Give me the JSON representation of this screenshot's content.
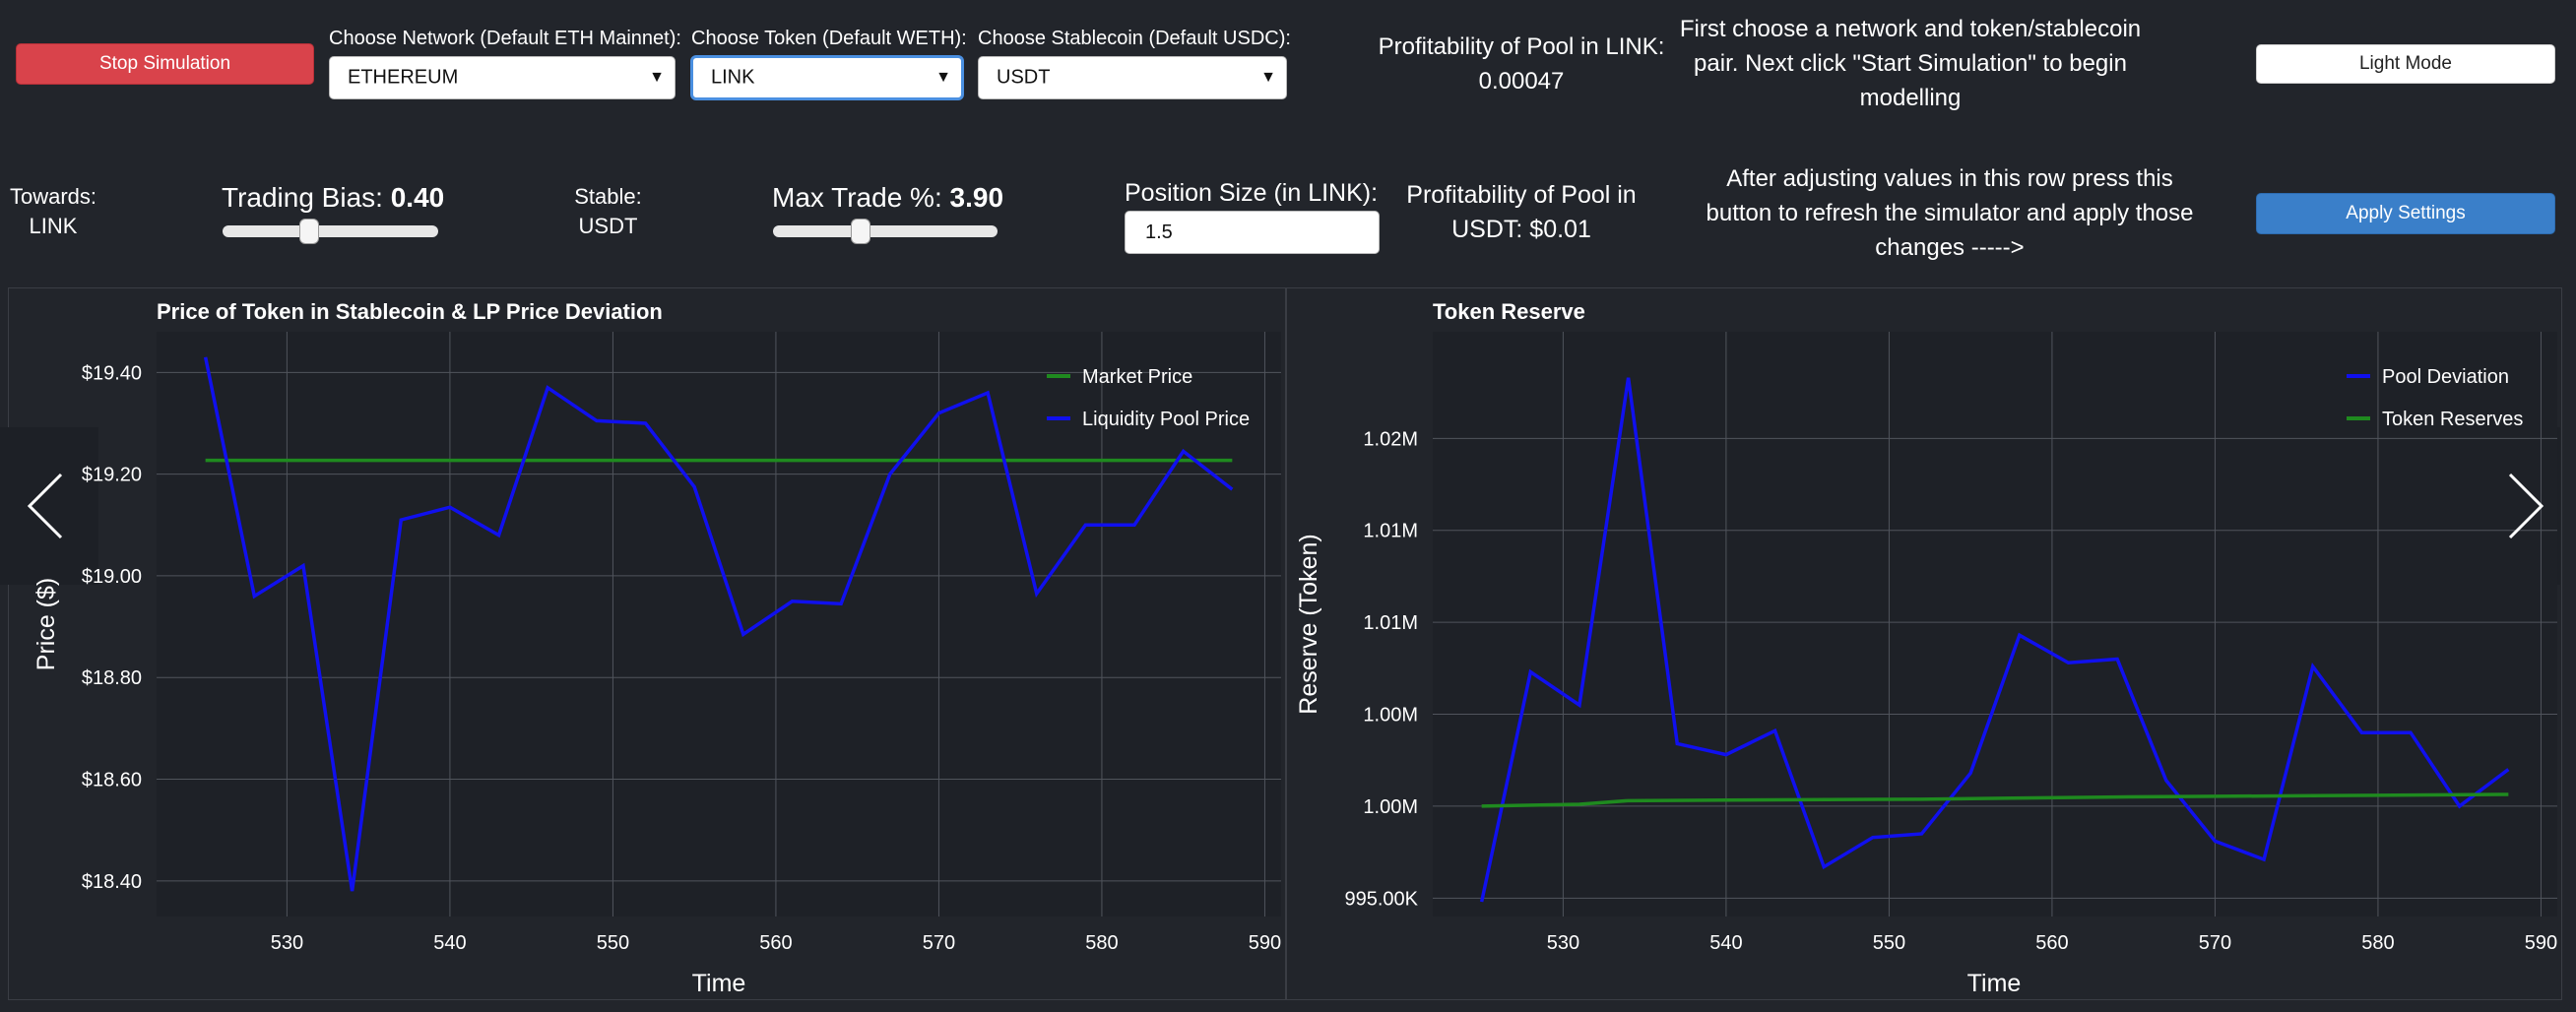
{
  "controls": {
    "stop_button": "Stop Simulation",
    "network_label": "Choose Network (Default ETH Mainnet):",
    "network_value": "ETHEREUM",
    "token_label": "Choose Token (Default WETH):",
    "token_value": "LINK",
    "stable_label": "Choose Stablecoin (Default USDC):",
    "stable_value": "USDT",
    "profit_token": "Profitability of Pool in LINK: 0.00047",
    "instructions": "First choose a network and token/stablecoin pair. Next click \"Start Simulation\" to begin modelling",
    "light_mode_button": "Light Mode",
    "towards_label": "Towards:",
    "towards_value": "LINK",
    "trading_bias_label": "Trading Bias: ",
    "trading_bias_value": "0.40",
    "trading_bias_level": 0.4,
    "stable_short_label": "Stable:",
    "stable_short_value": "USDT",
    "max_trade_label": "Max Trade %: ",
    "max_trade_value": "3.90",
    "max_trade_level": 0.39,
    "position_label": "Position Size (in LINK):",
    "position_value": "1.5",
    "profit_stable": "Profitability of Pool in USDT: $0.01",
    "apply_hint": "After adjusting values in this row press this button to refresh the simulator and apply those changes ----->",
    "apply_button": "Apply Settings"
  },
  "colors": {
    "market": "#1f8a1f",
    "pool": "#1010ee",
    "stop": "#d9434b",
    "apply": "#3a7fc9"
  },
  "chart_data": [
    {
      "type": "line",
      "title": "Price of Token in Stablecoin & LP Price Deviation",
      "xlabel": "Time",
      "ylabel": "Price ($)",
      "xlim": [
        522,
        591
      ],
      "ylim": [
        18.33,
        19.48
      ],
      "x_ticks": [
        530,
        540,
        550,
        560,
        570,
        580,
        590
      ],
      "y_ticks": [
        18.4,
        18.6,
        18.8,
        19.0,
        19.2,
        19.4
      ],
      "y_tick_labels": [
        "$18.40",
        "$18.60",
        "$18.80",
        "$19.00",
        "$19.20",
        "$19.40"
      ],
      "legend_position": "top-right",
      "grid": true,
      "series": [
        {
          "name": "Market Price",
          "color": "#1f8a1f",
          "x": [
            525,
            588
          ],
          "y": [
            19.227,
            19.227
          ]
        },
        {
          "name": "Liquidity Pool Price",
          "color": "#1010ee",
          "x": [
            525,
            528,
            531,
            534,
            537,
            540,
            543,
            546,
            549,
            552,
            555,
            558,
            561,
            564,
            567,
            570,
            573,
            576,
            579,
            582,
            585,
            588
          ],
          "y": [
            19.43,
            18.96,
            19.02,
            18.38,
            19.11,
            19.135,
            19.08,
            19.37,
            19.305,
            19.3,
            19.175,
            18.885,
            18.95,
            18.945,
            19.2,
            19.32,
            19.36,
            18.965,
            19.1,
            19.1,
            19.245,
            19.17
          ]
        }
      ]
    },
    {
      "type": "line",
      "title": "Token Reserve",
      "xlabel": "Time",
      "ylabel": "Reserve (Token)",
      "xlim": [
        522,
        591
      ],
      "ylim": [
        994000,
        1025800
      ],
      "x_ticks": [
        530,
        540,
        550,
        560,
        570,
        580,
        590
      ],
      "y_ticks": [
        995000,
        1000000,
        1005000,
        1010000,
        1015000,
        1020000
      ],
      "y_tick_labels": [
        "995.00K",
        "1.00M",
        "1.00M",
        "1.01M",
        "1.01M",
        "1.02M"
      ],
      "legend_position": "top-right",
      "grid": true,
      "series": [
        {
          "name": "Pool Deviation",
          "color": "#1010ee",
          "x": [
            525,
            528,
            531,
            534,
            537,
            540,
            543,
            546,
            549,
            552,
            555,
            558,
            561,
            564,
            567,
            570,
            573,
            576,
            579,
            582,
            585,
            588
          ],
          "y": [
            994800,
            1007300,
            1005500,
            1023300,
            1003400,
            1002800,
            1004100,
            996700,
            998300,
            998500,
            1001800,
            1009300,
            1007800,
            1008000,
            1001400,
            998100,
            997100,
            1007600,
            1004000,
            1004000,
            1000000,
            1002000
          ]
        },
        {
          "name": "Token Reserves",
          "color": "#1f8a1f",
          "x": [
            525,
            531,
            534,
            540,
            552,
            564,
            576,
            588
          ],
          "y": [
            1000000,
            1000100,
            1000300,
            1000330,
            1000380,
            1000500,
            1000570,
            1000640
          ]
        }
      ]
    }
  ]
}
